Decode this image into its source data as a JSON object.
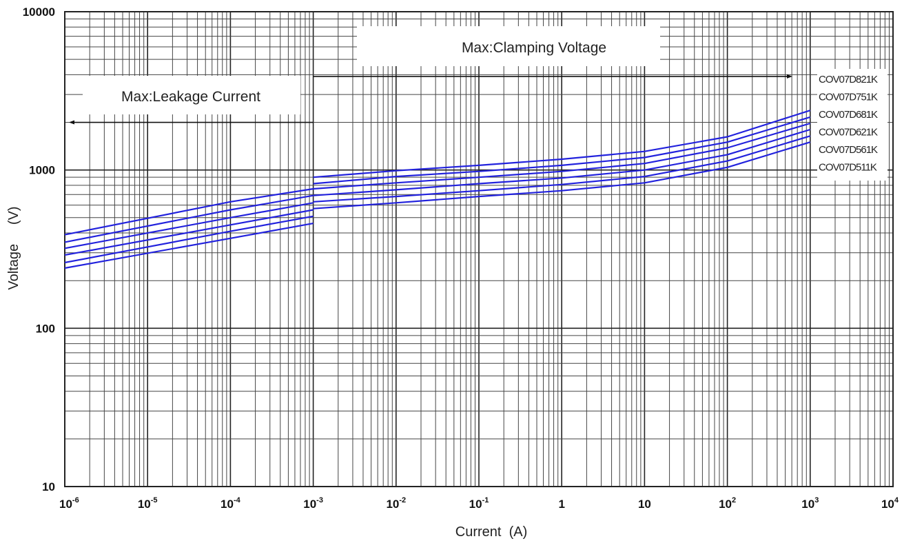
{
  "chart_data": {
    "type": "line",
    "xscale": "log",
    "yscale": "log",
    "xlabel": "Current  (A)",
    "ylabel": "Voltage     (V)",
    "xlim": [
      1e-06,
      10000
    ],
    "ylim": [
      10,
      10000
    ],
    "grid": true,
    "x_ticks": [
      {
        "base": "10",
        "exp": "-6",
        "value": 1e-06
      },
      {
        "base": "10",
        "exp": "-5",
        "value": 1e-05
      },
      {
        "base": "10",
        "exp": "-4",
        "value": 0.0001
      },
      {
        "base": "10",
        "exp": "-3",
        "value": 0.001
      },
      {
        "base": "10",
        "exp": "-2",
        "value": 0.01
      },
      {
        "base": "10",
        "exp": "-1",
        "value": 0.1
      },
      {
        "base": "1",
        "exp": "",
        "value": 1
      },
      {
        "base": "10",
        "exp": "",
        "value": 10
      },
      {
        "base": "10",
        "exp": "2",
        "value": 100
      },
      {
        "base": "10",
        "exp": "3",
        "value": 1000
      },
      {
        "base": "10",
        "exp": "4",
        "value": 10000
      }
    ],
    "y_ticks": [
      {
        "label": "10000",
        "value": 10000
      },
      {
        "label": "1000",
        "value": 1000
      },
      {
        "label": "100",
        "value": 100
      },
      {
        "label": "10",
        "value": 10
      }
    ],
    "annotations": {
      "leakage": {
        "text": "Max:Leakage Current",
        "arrow_from": [
          0.001,
          2000
        ],
        "arrow_to": [
          1e-06,
          2000
        ]
      },
      "clamping": {
        "text": "Max:Clamping Voltage",
        "arrow_from": [
          0.001,
          3900
        ],
        "arrow_to": [
          1000,
          3900
        ]
      }
    },
    "line_color": "#2222dd",
    "series": [
      {
        "name": "COV07D821K",
        "leakage": [
          [
            1e-06,
            390
          ],
          [
            0.0001,
            630
          ],
          [
            0.001,
            760
          ]
        ],
        "clamping": [
          [
            0.001,
            900
          ],
          [
            0.01,
            990
          ],
          [
            0.1,
            1070
          ],
          [
            1,
            1170
          ],
          [
            10,
            1310
          ],
          [
            100,
            1620
          ],
          [
            1000,
            2380
          ]
        ]
      },
      {
        "name": "COV07D751K",
        "leakage": [
          [
            1e-06,
            350
          ],
          [
            0.0001,
            560
          ],
          [
            0.001,
            690
          ]
        ],
        "clamping": [
          [
            0.001,
            820
          ],
          [
            0.01,
            910
          ],
          [
            0.1,
            980
          ],
          [
            1,
            1070
          ],
          [
            10,
            1200
          ],
          [
            100,
            1500
          ],
          [
            1000,
            2160
          ]
        ]
      },
      {
        "name": "COV07D681K",
        "leakage": [
          [
            1e-06,
            320
          ],
          [
            0.0001,
            500
          ],
          [
            0.001,
            620
          ]
        ],
        "clamping": [
          [
            0.001,
            760
          ],
          [
            0.01,
            830
          ],
          [
            0.1,
            900
          ],
          [
            1,
            980
          ],
          [
            10,
            1100
          ],
          [
            100,
            1380
          ],
          [
            1000,
            1970
          ]
        ]
      },
      {
        "name": "COV07D621K",
        "leakage": [
          [
            1e-06,
            290
          ],
          [
            0.0001,
            450
          ],
          [
            0.001,
            560
          ]
        ],
        "clamping": [
          [
            0.001,
            690
          ],
          [
            0.01,
            750
          ],
          [
            0.1,
            820
          ],
          [
            1,
            890
          ],
          [
            10,
            1000
          ],
          [
            100,
            1250
          ],
          [
            1000,
            1800
          ]
        ]
      },
      {
        "name": "COV07D561K",
        "leakage": [
          [
            1e-06,
            260
          ],
          [
            0.0001,
            410
          ],
          [
            0.001,
            510
          ]
        ],
        "clamping": [
          [
            0.001,
            630
          ],
          [
            0.01,
            680
          ],
          [
            0.1,
            740
          ],
          [
            1,
            810
          ],
          [
            10,
            910
          ],
          [
            100,
            1140
          ],
          [
            1000,
            1640
          ]
        ]
      },
      {
        "name": "COV07D511K",
        "leakage": [
          [
            1e-06,
            240
          ],
          [
            0.0001,
            370
          ],
          [
            0.001,
            460
          ]
        ],
        "clamping": [
          [
            0.001,
            570
          ],
          [
            0.01,
            620
          ],
          [
            0.1,
            680
          ],
          [
            1,
            740
          ],
          [
            10,
            830
          ],
          [
            100,
            1040
          ],
          [
            1000,
            1500
          ]
        ]
      }
    ]
  }
}
